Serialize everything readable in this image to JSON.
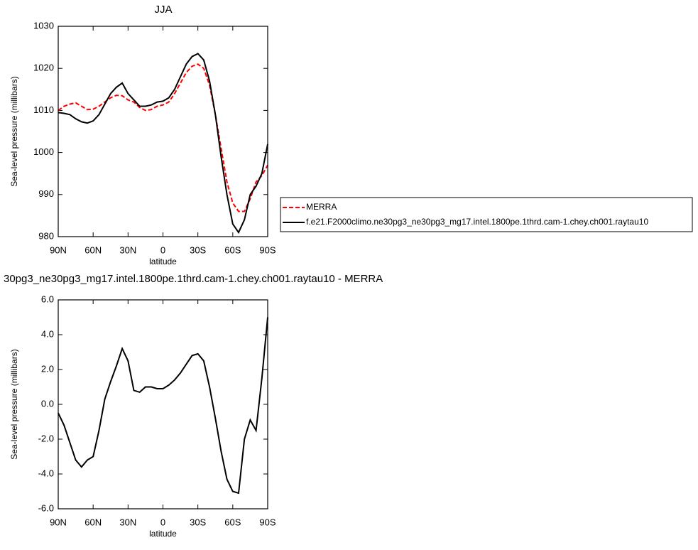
{
  "chart_data": [
    {
      "type": "line",
      "title": "JJA",
      "xlabel": "latitude",
      "ylabel": "Sea-level pressure (millibars)",
      "x": [
        90,
        85,
        80,
        75,
        70,
        65,
        60,
        55,
        50,
        45,
        40,
        35,
        30,
        25,
        20,
        15,
        10,
        5,
        0,
        -5,
        -10,
        -15,
        -20,
        -25,
        -30,
        -35,
        -40,
        -45,
        -50,
        -55,
        -60,
        -65,
        -70,
        -75,
        -80,
        -85,
        -90
      ],
      "xlim": [
        90,
        -90
      ],
      "xticks": [
        {
          "value": 90,
          "label": "90N"
        },
        {
          "value": 60,
          "label": "60N"
        },
        {
          "value": 30,
          "label": "30N"
        },
        0,
        {
          "value": -30,
          "label": "30S"
        },
        {
          "value": -60,
          "label": "60S"
        },
        {
          "value": -90,
          "label": "90S"
        }
      ],
      "ylim": [
        980,
        1030
      ],
      "yticks": [
        980,
        990,
        1000,
        1010,
        1020,
        1030
      ],
      "legend": "right",
      "series": [
        {
          "name": "MERRA",
          "color": "#ff0000",
          "line_style": "dashed",
          "values": [
            1010,
            1011,
            1011.5,
            1011.8,
            1011,
            1010.2,
            1010.3,
            1011,
            1012,
            1013,
            1013.6,
            1013.5,
            1012.5,
            1012,
            1010.7,
            1010,
            1010.2,
            1011,
            1011.3,
            1012,
            1014,
            1016.5,
            1019,
            1020.5,
            1021,
            1020,
            1016,
            1009,
            1001,
            993,
            988,
            986,
            986,
            989,
            993,
            994.5,
            997
          ]
        },
        {
          "name": "f.e21.F2000climo.ne30pg3_ne30pg3_mg17.intel.1800pe.1thrd.cam-1.chey.ch001.raytau10",
          "color": "#000000",
          "line_style": "solid",
          "values": [
            1009.5,
            1009.3,
            1009,
            1008,
            1007.3,
            1007,
            1007.5,
            1009,
            1011.5,
            1014,
            1015.5,
            1016.5,
            1014,
            1012.5,
            1011,
            1011,
            1011.3,
            1012,
            1012.2,
            1013,
            1015,
            1018,
            1021,
            1022.8,
            1023.5,
            1022,
            1017,
            1009,
            999,
            990,
            983,
            981,
            984,
            990,
            992,
            995,
            1002
          ]
        }
      ]
    },
    {
      "type": "line",
      "title": "30pg3_ne30pg3_mg17.intel.1800pe.1thrd.cam-1.chey.ch001.raytau10 - MERRA",
      "xlabel": "latitude",
      "ylabel": "Sea-level pressure (millibars)",
      "x": [
        90,
        85,
        80,
        75,
        70,
        65,
        60,
        55,
        50,
        45,
        40,
        35,
        30,
        25,
        20,
        15,
        10,
        5,
        0,
        -5,
        -10,
        -15,
        -20,
        -25,
        -30,
        -35,
        -40,
        -45,
        -50,
        -55,
        -60,
        -65,
        -70,
        -75,
        -80,
        -85,
        -90
      ],
      "xlim": [
        90,
        -90
      ],
      "xticks": [
        {
          "value": 90,
          "label": "90N"
        },
        {
          "value": 60,
          "label": "60N"
        },
        {
          "value": 30,
          "label": "30N"
        },
        0,
        {
          "value": -30,
          "label": "30S"
        },
        {
          "value": -60,
          "label": "60S"
        },
        {
          "value": -90,
          "label": "90S"
        }
      ],
      "ylim": [
        -6,
        6
      ],
      "yticks": [
        {
          "value": -6,
          "label": "-6.0"
        },
        {
          "value": -4,
          "label": "-4.0"
        },
        {
          "value": -2,
          "label": "-2.0"
        },
        {
          "value": 0,
          "label": "0.0"
        },
        {
          "value": 2,
          "label": "2.0"
        },
        {
          "value": 4,
          "label": "4.0"
        },
        {
          "value": 6,
          "label": "6.0"
        }
      ],
      "color": "#000000",
      "values": [
        -0.5,
        -1.2,
        -2.2,
        -3.2,
        -3.6,
        -3.2,
        -3.0,
        -1.5,
        0.3,
        1.3,
        2.2,
        3.2,
        2.5,
        0.8,
        0.7,
        1.0,
        1.0,
        0.9,
        0.9,
        1.1,
        1.4,
        1.8,
        2.3,
        2.8,
        2.9,
        2.5,
        1.0,
        -0.8,
        -2.7,
        -4.3,
        -5.0,
        -5.1,
        -2.0,
        -0.9,
        -1.5,
        1.5,
        5.0
      ]
    }
  ]
}
